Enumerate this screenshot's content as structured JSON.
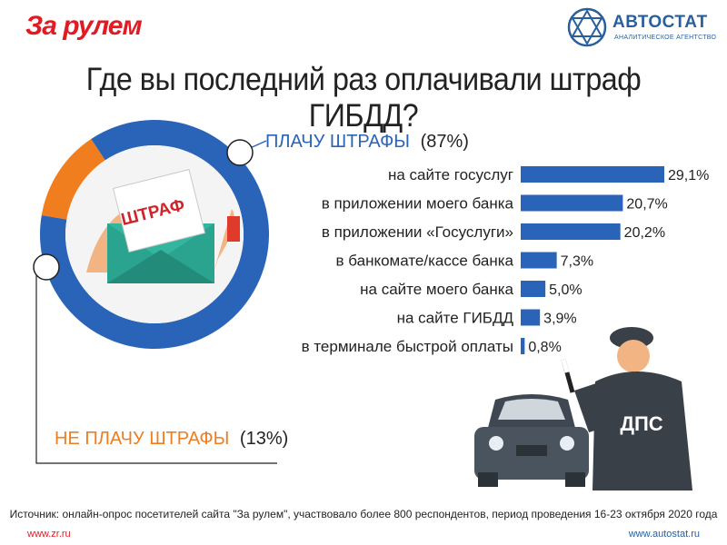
{
  "header": {
    "logo_left": "За рулем",
    "logo_right_name": "АВТОСТАТ",
    "logo_right_sub": "АНАЛИТИЧЕСКОЕ АГЕНТСТВО"
  },
  "colors": {
    "blue": "#2a64b8",
    "orange": "#f07d1e",
    "text": "#222222"
  },
  "chart_data": {
    "title": "Где вы последний раз оплачивали штраф ГИБДД?",
    "type": "pie",
    "groups": [
      {
        "label": "ПЛАЧУ ШТРАФЫ",
        "value_label": "(87%)",
        "value": 87,
        "color": "#2a64b8"
      },
      {
        "label": "НЕ ПЛАЧУ ШТРАФЫ",
        "value_label": "(13%)",
        "value": 13,
        "color": "#f07d1e"
      }
    ],
    "breakdown": {
      "type": "bar",
      "categories": [
        "на сайте госуслуг",
        "в приложении моего банка",
        "в приложении «Госуслуги»",
        "в банкомате/кассе банка",
        "на сайте моего банка",
        "на сайте ГИБДД",
        "в терминале быстрой оплаты"
      ],
      "values": [
        29.1,
        20.7,
        20.2,
        7.3,
        5.0,
        3.9,
        0.8
      ],
      "value_labels": [
        "29,1%",
        "20,7%",
        "20,2%",
        "7,3%",
        "5,0%",
        "3,9%",
        "0,8%"
      ]
    }
  },
  "illustration": {
    "envelope_text": "ШТРАФ",
    "vest_text": "ДПС"
  },
  "footer": {
    "source": "Источник: онлайн-опрос посетителей сайта \"За рулем\", участвовало более  800 респондентов, период проведения 16-23 октября 2020 года",
    "url_left": "www.zr.ru",
    "url_right": "www.autostat.ru"
  }
}
